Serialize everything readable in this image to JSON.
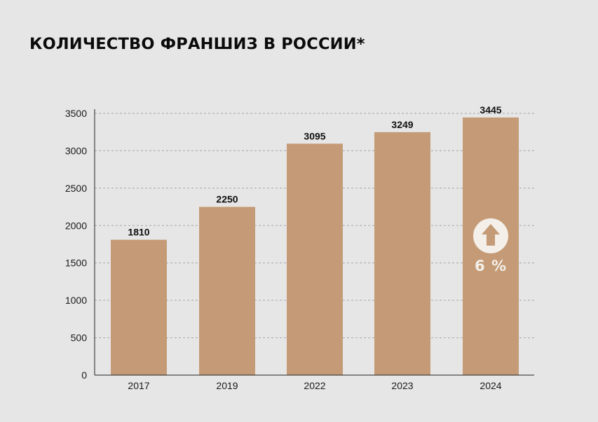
{
  "title": "КОЛИЧЕСТВО ФРАНШИЗ В РОССИИ*",
  "colors": {
    "background": "#e7e6e6",
    "bar": "#c49b76",
    "grid": "#a6a6a6",
    "badge": "#f4efe9"
  },
  "annotation": {
    "icon": "arrow-up-circle-icon",
    "text": "6 %"
  },
  "chart_data": {
    "type": "bar",
    "categories": [
      "2017",
      "2019",
      "2022",
      "2023",
      "2024"
    ],
    "values": [
      1810,
      2250,
      3095,
      3249,
      3445
    ],
    "data_labels": [
      "1810",
      "2250",
      "3095",
      "3249",
      "3445"
    ],
    "yticks": [
      0,
      500,
      1000,
      1500,
      2000,
      2500,
      3000,
      3500
    ],
    "ylim": [
      0,
      3500
    ],
    "grid": true,
    "grid_style": "dashed",
    "legend": false,
    "title": "КОЛИЧЕСТВО ФРАНШИЗ В РОССИИ*"
  }
}
